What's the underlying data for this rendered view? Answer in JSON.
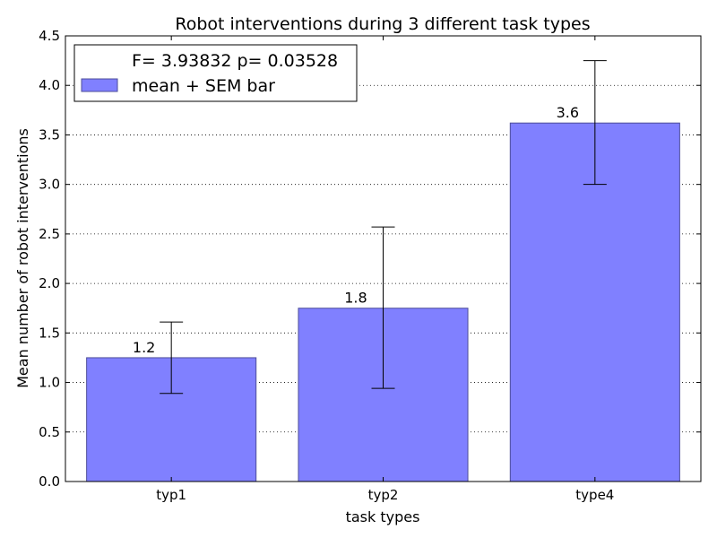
{
  "chart_data": {
    "type": "bar",
    "title": "Robot interventions during 3 different task types",
    "xlabel": "task types",
    "ylabel": "Mean number of robot interventions",
    "categories": [
      "typ1",
      "typ2",
      "type4"
    ],
    "values": [
      1.25,
      1.75,
      3.62
    ],
    "value_labels": [
      "1.2",
      "1.8",
      "3.6"
    ],
    "error_low": [
      0.89,
      0.94,
      3.0
    ],
    "error_high": [
      1.61,
      2.57,
      4.25
    ],
    "ylim": [
      0,
      4.5
    ],
    "yticks": [
      0.0,
      0.5,
      1.0,
      1.5,
      2.0,
      2.5,
      3.0,
      3.5,
      4.0,
      4.5
    ],
    "ytick_labels": [
      "0.0",
      "0.5",
      "1.0",
      "1.5",
      "2.0",
      "2.5",
      "3.0",
      "3.5",
      "4.0",
      "4.5"
    ],
    "grid": "horizontal dotted",
    "bar_color": "#8080ff",
    "bar_edge_color": "#4d4d99",
    "legend": {
      "position": "top-left",
      "stat_text": "F= 3.93832 p= 0.03528",
      "series_label": "mean + SEM bar"
    }
  }
}
